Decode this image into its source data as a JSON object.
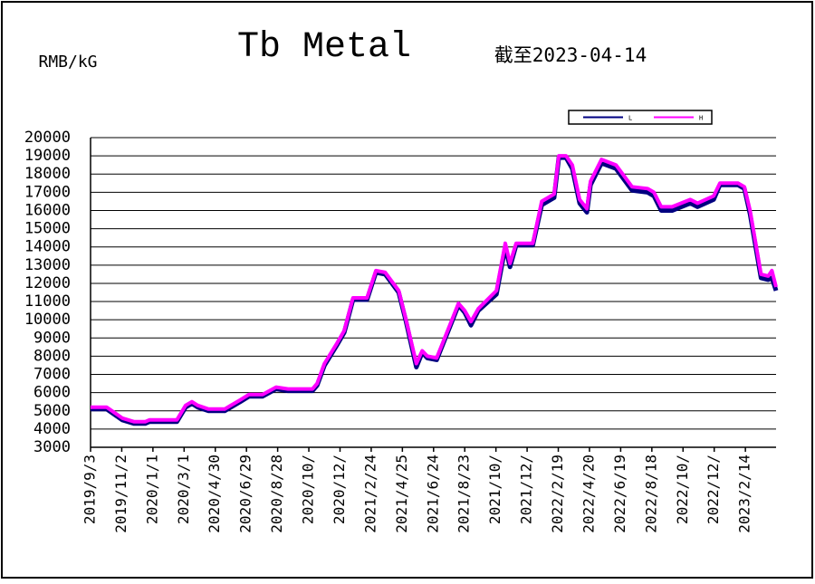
{
  "chart_data": {
    "type": "line",
    "title": "Tb Metal",
    "subtitle": "截至2023-04-14",
    "y_label": "RMB/kG",
    "x": [
      "2019-09-03",
      "2019-10-04",
      "2019-11-03",
      "2019-11-26",
      "2019-12-17",
      "2019-12-25",
      "2020-02-16",
      "2020-03-04",
      "2020-03-16",
      "2020-03-27",
      "2020-04-17",
      "2020-05-18",
      "2020-06-17",
      "2020-07-04",
      "2020-07-30",
      "2020-08-25",
      "2020-09-17",
      "2020-11-03",
      "2020-11-12",
      "2020-11-26",
      "2020-12-20",
      "2021-01-03",
      "2021-01-20",
      "2021-02-16",
      "2021-03-05",
      "2021-03-23",
      "2021-04-18",
      "2021-05-02",
      "2021-05-22",
      "2021-06-02",
      "2021-06-12",
      "2021-06-30",
      "2021-07-28",
      "2021-08-11",
      "2021-08-23",
      "2021-09-04",
      "2021-09-18",
      "2021-10-23",
      "2021-11-09",
      "2021-11-18",
      "2021-11-30",
      "2022-01-01",
      "2022-01-18",
      "2022-02-11",
      "2022-02-20",
      "2022-03-06",
      "2022-03-18",
      "2022-04-01",
      "2022-04-15",
      "2022-04-22",
      "2022-05-13",
      "2022-06-10",
      "2022-07-11",
      "2022-08-10",
      "2022-08-22",
      "2022-09-05",
      "2022-09-26",
      "2022-10-31",
      "2022-11-14",
      "2022-12-15",
      "2022-12-27",
      "2023-01-31",
      "2023-02-12",
      "2023-02-23",
      "2023-03-07",
      "2023-03-16",
      "2023-03-30",
      "2023-04-06",
      "2023-04-14"
    ],
    "series": [
      {
        "name": "L",
        "color": "#000080",
        "values": [
          5100,
          5100,
          4500,
          4300,
          4300,
          4400,
          4400,
          5200,
          5400,
          5200,
          5000,
          5000,
          5500,
          5800,
          5800,
          6200,
          6100,
          6100,
          6400,
          7500,
          8600,
          9300,
          11100,
          11100,
          12600,
          12500,
          11500,
          9900,
          7400,
          8200,
          7900,
          7800,
          9800,
          10800,
          10400,
          9700,
          10500,
          11400,
          14000,
          12900,
          14100,
          14100,
          16300,
          16700,
          18900,
          18900,
          18300,
          16400,
          15900,
          17400,
          18600,
          18300,
          17100,
          17000,
          16800,
          16000,
          16000,
          16400,
          16200,
          16600,
          17400,
          17400,
          17200,
          15800,
          13800,
          12300,
          12200,
          12300,
          11600
        ]
      },
      {
        "name": "H",
        "color": "#ff00ff",
        "values": [
          5200,
          5200,
          4600,
          4400,
          4400,
          4500,
          4500,
          5300,
          5500,
          5300,
          5100,
          5100,
          5600,
          5900,
          5900,
          6300,
          6200,
          6200,
          6500,
          7600,
          8700,
          9400,
          11200,
          11200,
          12700,
          12600,
          11600,
          10000,
          7600,
          8300,
          8000,
          7900,
          9900,
          10900,
          10500,
          9900,
          10600,
          11600,
          14200,
          13100,
          14200,
          14200,
          16500,
          16900,
          19000,
          19000,
          18500,
          16600,
          16100,
          17600,
          18800,
          18500,
          17300,
          17200,
          17000,
          16200,
          16200,
          16600,
          16400,
          16800,
          17500,
          17500,
          17300,
          16000,
          14000,
          12500,
          12400,
          12700,
          11800
        ]
      }
    ],
    "xlim": [
      "2019-09-03",
      "2023-04-14"
    ],
    "xticks": [
      {
        "value": "2019-09-03",
        "label": "2019/9/3"
      },
      {
        "value": "2019-11-02",
        "label": "2019/11/2"
      },
      {
        "value": "2020-01-01",
        "label": "2020/1/1"
      },
      {
        "value": "2020-03-01",
        "label": "2020/3/1"
      },
      {
        "value": "2020-04-30",
        "label": "2020/4/30"
      },
      {
        "value": "2020-06-29",
        "label": "2020/6/29"
      },
      {
        "value": "2020-08-28",
        "label": "2020/8/28"
      },
      {
        "value": "2020-10-27",
        "label": "2020/10/"
      },
      {
        "value": "2020-12-26",
        "label": "2020/12/"
      },
      {
        "value": "2021-02-24",
        "label": "2021/2/24"
      },
      {
        "value": "2021-04-25",
        "label": "2021/4/25"
      },
      {
        "value": "2021-06-24",
        "label": "2021/6/24"
      },
      {
        "value": "2021-08-23",
        "label": "2021/8/23"
      },
      {
        "value": "2021-10-22",
        "label": "2021/10/"
      },
      {
        "value": "2021-12-21",
        "label": "2021/12/"
      },
      {
        "value": "2022-02-19",
        "label": "2022/2/19"
      },
      {
        "value": "2022-04-20",
        "label": "2022/4/20"
      },
      {
        "value": "2022-06-19",
        "label": "2022/6/19"
      },
      {
        "value": "2022-08-18",
        "label": "2022/8/18"
      },
      {
        "value": "2022-10-17",
        "label": "2022/10/"
      },
      {
        "value": "2022-12-16",
        "label": "2022/12/"
      },
      {
        "value": "2023-02-14",
        "label": "2023/2/14"
      }
    ],
    "ylim": [
      3000,
      20000
    ],
    "yticks": [
      3000,
      4000,
      5000,
      6000,
      7000,
      8000,
      9000,
      10000,
      11000,
      12000,
      13000,
      14000,
      15000,
      16000,
      17000,
      18000,
      19000,
      20000
    ],
    "grid": true,
    "legend": "top-right"
  }
}
